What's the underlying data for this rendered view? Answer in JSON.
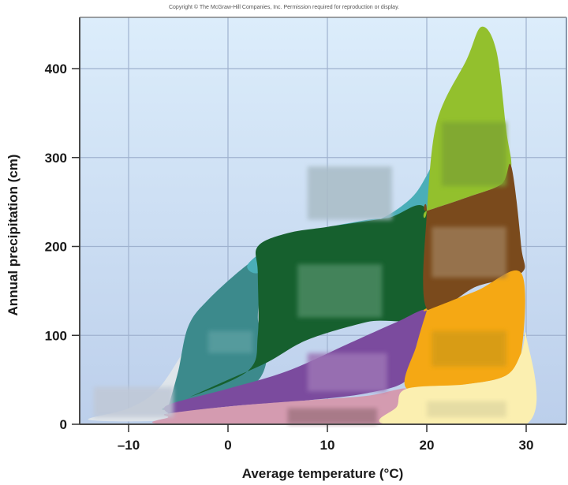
{
  "copyright": "Copyright © The McGraw-Hill Companies, Inc. Permission required for reproduction or display.",
  "chart_data": {
    "type": "area",
    "title": "",
    "xlabel": "Average temperature (°C)",
    "ylabel": "Annual precipitation (cm)",
    "xlim": [
      -15,
      34
    ],
    "ylim": [
      0,
      457
    ],
    "xticks": [
      -10,
      0,
      10,
      20,
      30
    ],
    "xtick_labels": [
      "–10",
      "0",
      "10",
      "20",
      "30"
    ],
    "yticks": [
      0,
      100,
      200,
      300,
      400
    ],
    "ytick_labels": [
      "0",
      "100",
      "200",
      "300",
      "400"
    ],
    "grid": true,
    "background": {
      "top": "#dcedfb",
      "bottom": "#bccfeb"
    },
    "regions": [
      {
        "name": "pale-region",
        "color": "#dfe5ea",
        "points": [
          [
            -14,
            5
          ],
          [
            -10,
            18
          ],
          [
            -7,
            40
          ],
          [
            -4,
            90
          ],
          [
            -2,
            120
          ],
          [
            0,
            110
          ],
          [
            -4,
            60
          ],
          [
            -6,
            20
          ],
          [
            -6,
            5
          ]
        ]
      },
      {
        "name": "teal-region",
        "color": "#3c8a8c",
        "points": [
          [
            -6,
            20
          ],
          [
            -5,
            60
          ],
          [
            -4,
            110
          ],
          [
            -2,
            140
          ],
          [
            2,
            180
          ],
          [
            5,
            200
          ],
          [
            7,
            210
          ],
          [
            4,
            170
          ],
          [
            3,
            120
          ],
          [
            4,
            80
          ],
          [
            2,
            40
          ],
          [
            -6,
            20
          ]
        ]
      },
      {
        "name": "light-teal-region",
        "color": "#4aaeb8",
        "points": [
          [
            2,
            180
          ],
          [
            5,
            205
          ],
          [
            8,
            215
          ],
          [
            14,
            225
          ],
          [
            18,
            250
          ],
          [
            20,
            280
          ],
          [
            22,
            330
          ],
          [
            23,
            350
          ],
          [
            21,
            320
          ],
          [
            20,
            240
          ],
          [
            14,
            230
          ],
          [
            8,
            215
          ],
          [
            5,
            190
          ],
          [
            3,
            170
          ]
        ]
      },
      {
        "name": "dark-green-region",
        "color": "#16602e",
        "points": [
          [
            3,
            200
          ],
          [
            6,
            215
          ],
          [
            10,
            222
          ],
          [
            16,
            232
          ],
          [
            20,
            240
          ],
          [
            20,
            128
          ],
          [
            14,
            115
          ],
          [
            8,
            95
          ],
          [
            4,
            70
          ],
          [
            0,
            50
          ],
          [
            -4,
            30
          ],
          [
            2,
            60
          ],
          [
            3,
            100
          ],
          [
            3,
            170
          ]
        ]
      },
      {
        "name": "yellow-green-region",
        "color": "#93c02d",
        "points": [
          [
            20,
            240
          ],
          [
            21,
            340
          ],
          [
            24,
            410
          ],
          [
            25.5,
            447
          ],
          [
            27,
            420
          ],
          [
            28,
            330
          ],
          [
            28.5,
            290
          ],
          [
            27.5,
            270
          ],
          [
            24,
            255
          ],
          [
            20,
            240
          ]
        ]
      },
      {
        "name": "brown-region",
        "color": "#7a4a1c",
        "points": [
          [
            20,
            240
          ],
          [
            24,
            255
          ],
          [
            27.5,
            270
          ],
          [
            28.5,
            290
          ],
          [
            29.5,
            200
          ],
          [
            29.5,
            170
          ],
          [
            25,
            155
          ],
          [
            20,
            130
          ],
          [
            20,
            240
          ]
        ]
      },
      {
        "name": "purple-region",
        "color": "#7b4b9e",
        "points": [
          [
            -6,
            12
          ],
          [
            -6,
            22
          ],
          [
            0,
            40
          ],
          [
            6,
            60
          ],
          [
            12,
            90
          ],
          [
            17,
            115
          ],
          [
            20,
            128
          ],
          [
            19,
            90
          ],
          [
            18,
            50
          ],
          [
            14,
            35
          ],
          [
            8,
            27
          ],
          [
            0,
            20
          ],
          [
            -6,
            12
          ]
        ]
      },
      {
        "name": "orange-region",
        "color": "#f5a814",
        "points": [
          [
            20,
            128
          ],
          [
            25,
            150
          ],
          [
            29.5,
            170
          ],
          [
            29.5,
            80
          ],
          [
            28,
            55
          ],
          [
            24,
            45
          ],
          [
            18,
            40
          ],
          [
            19,
            90
          ],
          [
            20,
            128
          ]
        ]
      },
      {
        "name": "pink-region",
        "color": "#d49bb0",
        "points": [
          [
            -6,
            8
          ],
          [
            -6,
            12
          ],
          [
            0,
            20
          ],
          [
            8,
            27
          ],
          [
            14,
            32
          ],
          [
            18,
            40
          ],
          [
            17,
            20
          ],
          [
            16,
            0
          ],
          [
            -6,
            0
          ]
        ]
      },
      {
        "name": "pale-yellow-region",
        "color": "#fbefb0",
        "points": [
          [
            16,
            0
          ],
          [
            17,
            20
          ],
          [
            18,
            40
          ],
          [
            24,
            45
          ],
          [
            28,
            55
          ],
          [
            29.5,
            80
          ],
          [
            30,
            100
          ],
          [
            30,
            0
          ]
        ]
      }
    ],
    "label_boxes": [
      {
        "name": "label-box-tundra",
        "color": "#c0c8d6",
        "x": [
          -13.5,
          -5.5
        ],
        "y": [
          8,
          42
        ]
      },
      {
        "name": "label-box-boreal",
        "color": "#5a9ea0",
        "x": [
          -2,
          2.5
        ],
        "y": [
          80,
          105
        ]
      },
      {
        "name": "label-box-temperate-rainforest",
        "color": "#a9bcc6",
        "x": [
          8,
          16.5
        ],
        "y": [
          230,
          290
        ]
      },
      {
        "name": "label-box-temperate-forest",
        "color": "#4b8a62",
        "x": [
          7,
          15.5
        ],
        "y": [
          120,
          180
        ]
      },
      {
        "name": "label-box-grassland",
        "color": "#9c74b5",
        "x": [
          8,
          16
        ],
        "y": [
          37,
          80
        ]
      },
      {
        "name": "label-box-desert-cold",
        "color": "#a17582",
        "x": [
          6,
          15
        ],
        "y": [
          0,
          18
        ]
      },
      {
        "name": "label-box-tropical-rainforest",
        "color": "#7ea632",
        "x": [
          21.5,
          28
        ],
        "y": [
          268,
          340
        ]
      },
      {
        "name": "label-box-tropical-seasonal",
        "color": "#9c7a55",
        "x": [
          20.5,
          28
        ],
        "y": [
          165,
          222
        ]
      },
      {
        "name": "label-box-savanna",
        "color": "#d49b12",
        "x": [
          20.5,
          28
        ],
        "y": [
          65,
          105
        ]
      },
      {
        "name": "label-box-desert-hot",
        "color": "#e2d9a2",
        "x": [
          20,
          28
        ],
        "y": [
          8,
          26
        ]
      }
    ]
  }
}
